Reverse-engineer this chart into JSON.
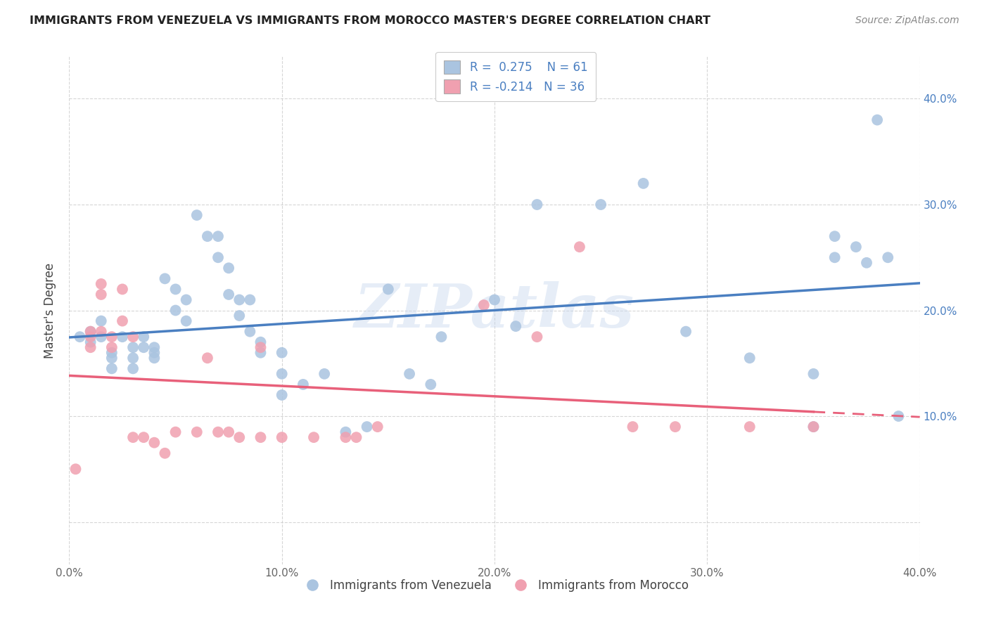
{
  "title": "IMMIGRANTS FROM VENEZUELA VS IMMIGRANTS FROM MOROCCO MASTER'S DEGREE CORRELATION CHART",
  "source": "Source: ZipAtlas.com",
  "ylabel": "Master's Degree",
  "watermark": "ZIPatlas",
  "r_venezuela": 0.275,
  "n_venezuela": 61,
  "r_morocco": -0.214,
  "n_morocco": 36,
  "xlim": [
    0.0,
    0.4
  ],
  "ylim": [
    -0.04,
    0.44
  ],
  "yticks": [
    0.0,
    0.1,
    0.2,
    0.3,
    0.4
  ],
  "xticks": [
    0.0,
    0.1,
    0.2,
    0.3,
    0.4
  ],
  "color_venezuela": "#aac4e0",
  "color_morocco": "#f0a0b0",
  "line_color_venezuela": "#4a7fc1",
  "line_color_morocco": "#e8607a",
  "background": "#ffffff",
  "venezuela_x": [
    0.005,
    0.01,
    0.01,
    0.015,
    0.015,
    0.02,
    0.02,
    0.02,
    0.025,
    0.03,
    0.03,
    0.03,
    0.035,
    0.035,
    0.04,
    0.04,
    0.04,
    0.045,
    0.05,
    0.05,
    0.055,
    0.055,
    0.06,
    0.065,
    0.07,
    0.07,
    0.075,
    0.075,
    0.08,
    0.08,
    0.085,
    0.085,
    0.09,
    0.09,
    0.1,
    0.1,
    0.1,
    0.11,
    0.12,
    0.13,
    0.14,
    0.15,
    0.16,
    0.17,
    0.175,
    0.2,
    0.21,
    0.22,
    0.25,
    0.27,
    0.29,
    0.32,
    0.35,
    0.35,
    0.36,
    0.37,
    0.38,
    0.36,
    0.375,
    0.39,
    0.385
  ],
  "venezuela_y": [
    0.175,
    0.18,
    0.17,
    0.19,
    0.175,
    0.16,
    0.155,
    0.145,
    0.175,
    0.165,
    0.155,
    0.145,
    0.165,
    0.175,
    0.165,
    0.16,
    0.155,
    0.23,
    0.22,
    0.2,
    0.21,
    0.19,
    0.29,
    0.27,
    0.27,
    0.25,
    0.215,
    0.24,
    0.21,
    0.195,
    0.21,
    0.18,
    0.17,
    0.16,
    0.16,
    0.14,
    0.12,
    0.13,
    0.14,
    0.085,
    0.09,
    0.22,
    0.14,
    0.13,
    0.175,
    0.21,
    0.185,
    0.3,
    0.3,
    0.32,
    0.18,
    0.155,
    0.14,
    0.09,
    0.27,
    0.26,
    0.38,
    0.25,
    0.245,
    0.1,
    0.25
  ],
  "morocco_x": [
    0.003,
    0.01,
    0.01,
    0.01,
    0.015,
    0.015,
    0.015,
    0.02,
    0.02,
    0.025,
    0.025,
    0.03,
    0.03,
    0.035,
    0.04,
    0.045,
    0.05,
    0.06,
    0.065,
    0.07,
    0.075,
    0.08,
    0.09,
    0.09,
    0.1,
    0.115,
    0.13,
    0.135,
    0.145,
    0.195,
    0.22,
    0.24,
    0.265,
    0.285,
    0.32,
    0.35
  ],
  "morocco_y": [
    0.05,
    0.18,
    0.175,
    0.165,
    0.225,
    0.215,
    0.18,
    0.175,
    0.165,
    0.22,
    0.19,
    0.175,
    0.08,
    0.08,
    0.075,
    0.065,
    0.085,
    0.085,
    0.155,
    0.085,
    0.085,
    0.08,
    0.08,
    0.165,
    0.08,
    0.08,
    0.08,
    0.08,
    0.09,
    0.205,
    0.175,
    0.26,
    0.09,
    0.09,
    0.09,
    0.09
  ],
  "legend_r_color": "#4a7fc1",
  "legend_n_color": "#4a7fc1",
  "title_fontsize": 11.5,
  "source_fontsize": 10,
  "tick_fontsize": 11,
  "ylabel_fontsize": 12,
  "watermark_fontsize": 62,
  "watermark_color": "#c8d8ee",
  "watermark_alpha": 0.45
}
